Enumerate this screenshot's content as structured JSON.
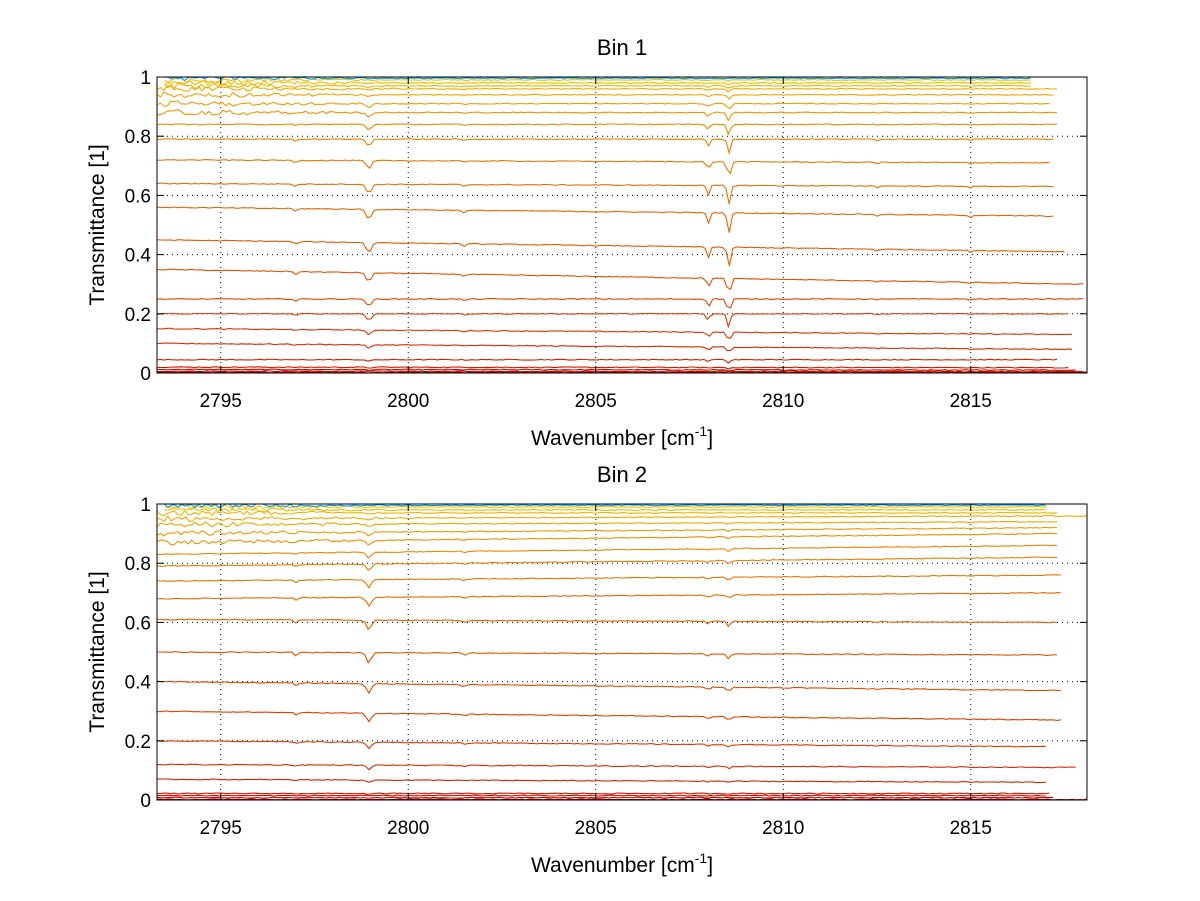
{
  "chart_data": [
    {
      "type": "line",
      "title": "Bin 1",
      "xlabel_text": "Wavenumber [cm",
      "xlabel_sup": "-1",
      "xlabel_close": "]",
      "ylabel": "Transmittance [1]",
      "xlim": [
        2793.3,
        2818.1
      ],
      "ylim": [
        0,
        1
      ],
      "xticks": [
        2795,
        2800,
        2805,
        2810,
        2815
      ],
      "xtick_labels": [
        "2795",
        "2800",
        "2805",
        "2810",
        "2815"
      ],
      "yticks": [
        0,
        0.2,
        0.4,
        0.6,
        0.8,
        1
      ],
      "ytick_labels": [
        "0",
        "0.2",
        "0.4",
        "0.6",
        "0.8",
        "1"
      ],
      "grid": true,
      "grid_style": "dotted",
      "series_count": 48,
      "line_colormap": [
        "#C00000",
        "#E03000",
        "#E86A00",
        "#F0A000",
        "#F5C800",
        "#00A0FF"
      ],
      "series": [
        {
          "x_start": 2793.3,
          "x_end": 2818.1,
          "y_left": 0.002,
          "y_right": 0.002
        },
        {
          "x_start": 2793.3,
          "x_end": 2818.0,
          "y_left": 0.006,
          "y_right": 0.005
        },
        {
          "x_start": 2793.3,
          "x_end": 2817.8,
          "y_left": 0.012,
          "y_right": 0.01
        },
        {
          "x_start": 2793.3,
          "x_end": 2817.6,
          "y_left": 0.02,
          "y_right": 0.018
        },
        {
          "x_start": 2793.3,
          "x_end": 2817.3,
          "y_left": 0.045,
          "y_right": 0.045
        },
        {
          "x_start": 2793.3,
          "x_end": 2817.7,
          "y_left": 0.1,
          "y_right": 0.08
        },
        {
          "x_start": 2793.3,
          "x_end": 2817.7,
          "y_left": 0.15,
          "y_right": 0.13
        },
        {
          "x_start": 2793.3,
          "x_end": 2817.6,
          "y_left": 0.2,
          "y_right": 0.2
        },
        {
          "x_start": 2793.3,
          "x_end": 2818.0,
          "y_left": 0.25,
          "y_right": 0.25
        },
        {
          "x_start": 2793.3,
          "x_end": 2818.0,
          "y_left": 0.35,
          "y_right": 0.3
        },
        {
          "x_start": 2793.3,
          "x_end": 2817.5,
          "y_left": 0.45,
          "y_right": 0.41
        },
        {
          "x_start": 2793.3,
          "x_end": 2817.2,
          "y_left": 0.56,
          "y_right": 0.53
        },
        {
          "x_start": 2793.3,
          "x_end": 2817.2,
          "y_left": 0.64,
          "y_right": 0.63
        },
        {
          "x_start": 2793.3,
          "x_end": 2817.1,
          "y_left": 0.72,
          "y_right": 0.71
        },
        {
          "x_start": 2793.3,
          "x_end": 2817.2,
          "y_left": 0.79,
          "y_right": 0.79
        },
        {
          "x_start": 2793.3,
          "x_end": 2817.3,
          "y_left": 0.84,
          "y_right": 0.84
        },
        {
          "x_start": 2793.3,
          "x_end": 2817.3,
          "y_left": 0.88,
          "y_right": 0.88
        },
        {
          "x_start": 2793.3,
          "x_end": 2817.1,
          "y_left": 0.91,
          "y_right": 0.91
        },
        {
          "x_start": 2793.3,
          "x_end": 2817.2,
          "y_left": 0.94,
          "y_right": 0.94
        },
        {
          "x_start": 2793.3,
          "x_end": 2817.3,
          "y_left": 0.96,
          "y_right": 0.96
        },
        {
          "x_start": 2793.5,
          "x_end": 2816.6,
          "y_left": 0.97,
          "y_right": 0.97
        },
        {
          "x_start": 2793.5,
          "x_end": 2816.6,
          "y_left": 0.98,
          "y_right": 0.98
        },
        {
          "x_start": 2793.5,
          "x_end": 2816.6,
          "y_left": 0.99,
          "y_right": 0.99
        },
        {
          "x_start": 2793.5,
          "x_end": 2816.6,
          "y_left": 0.996,
          "y_right": 0.996
        }
      ]
    },
    {
      "type": "line",
      "title": "Bin 2",
      "xlabel_text": "Wavenumber [cm",
      "xlabel_sup": "-1",
      "xlabel_close": "]",
      "ylabel": "Transmittance [1]",
      "xlim": [
        2793.3,
        2818.1
      ],
      "ylim": [
        0,
        1
      ],
      "xticks": [
        2795,
        2800,
        2805,
        2810,
        2815
      ],
      "xtick_labels": [
        "2795",
        "2800",
        "2805",
        "2810",
        "2815"
      ],
      "yticks": [
        0,
        0.2,
        0.4,
        0.6,
        0.8,
        1
      ],
      "ytick_labels": [
        "0",
        "0.2",
        "0.4",
        "0.6",
        "0.8",
        "1"
      ],
      "grid": true,
      "grid_style": "dotted",
      "series_count": 48,
      "line_colormap": [
        "#C00000",
        "#E03000",
        "#E86A00",
        "#F0A000",
        "#F5C800",
        "#00A0FF"
      ],
      "series": [
        {
          "x_start": 2793.3,
          "x_end": 2818.1,
          "y_left": 0.002,
          "y_right": 0.002
        },
        {
          "x_start": 2793.3,
          "x_end": 2817.2,
          "y_left": 0.008,
          "y_right": 0.008
        },
        {
          "x_start": 2793.3,
          "x_end": 2817.0,
          "y_left": 0.015,
          "y_right": 0.015
        },
        {
          "x_start": 2793.3,
          "x_end": 2817.1,
          "y_left": 0.022,
          "y_right": 0.022
        },
        {
          "x_start": 2793.3,
          "x_end": 2817.0,
          "y_left": 0.07,
          "y_right": 0.06
        },
        {
          "x_start": 2793.3,
          "x_end": 2817.8,
          "y_left": 0.12,
          "y_right": 0.11
        },
        {
          "x_start": 2793.3,
          "x_end": 2817.0,
          "y_left": 0.2,
          "y_right": 0.18
        },
        {
          "x_start": 2793.3,
          "x_end": 2817.4,
          "y_left": 0.3,
          "y_right": 0.27
        },
        {
          "x_start": 2793.3,
          "x_end": 2817.4,
          "y_left": 0.4,
          "y_right": 0.37
        },
        {
          "x_start": 2793.3,
          "x_end": 2817.3,
          "y_left": 0.5,
          "y_right": 0.49
        },
        {
          "x_start": 2793.3,
          "x_end": 2817.3,
          "y_left": 0.61,
          "y_right": 0.6
        },
        {
          "x_start": 2793.3,
          "x_end": 2817.4,
          "y_left": 0.68,
          "y_right": 0.7
        },
        {
          "x_start": 2793.3,
          "x_end": 2817.4,
          "y_left": 0.74,
          "y_right": 0.76
        },
        {
          "x_start": 2793.3,
          "x_end": 2817.3,
          "y_left": 0.79,
          "y_right": 0.82
        },
        {
          "x_start": 2793.3,
          "x_end": 2817.3,
          "y_left": 0.83,
          "y_right": 0.86
        },
        {
          "x_start": 2793.3,
          "x_end": 2817.3,
          "y_left": 0.87,
          "y_right": 0.9
        },
        {
          "x_start": 2793.3,
          "x_end": 2817.3,
          "y_left": 0.9,
          "y_right": 0.92
        },
        {
          "x_start": 2793.3,
          "x_end": 2817.3,
          "y_left": 0.93,
          "y_right": 0.94
        },
        {
          "x_start": 2793.3,
          "x_end": 2818.1,
          "y_left": 0.95,
          "y_right": 0.96
        },
        {
          "x_start": 2793.3,
          "x_end": 2817.3,
          "y_left": 0.97,
          "y_right": 0.97
        },
        {
          "x_start": 2793.5,
          "x_end": 2817.0,
          "y_left": 0.98,
          "y_right": 0.98
        },
        {
          "x_start": 2793.5,
          "x_end": 2817.0,
          "y_left": 0.99,
          "y_right": 0.99
        },
        {
          "x_start": 2793.5,
          "x_end": 2817.0,
          "y_left": 0.996,
          "y_right": 0.996
        }
      ]
    }
  ]
}
